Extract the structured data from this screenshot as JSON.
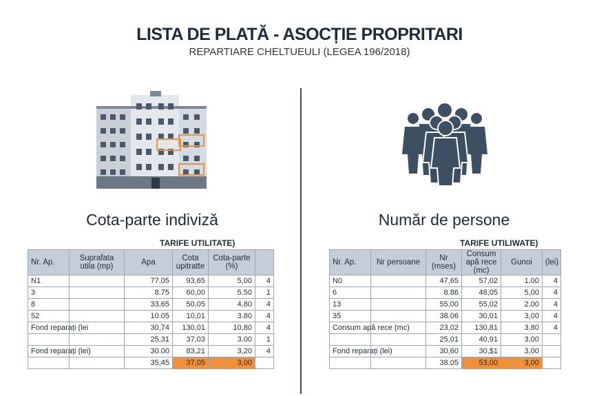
{
  "header": {
    "title": "LISTA DE PLATĂ - ASOCȚIE PROPRITARI",
    "subtitle": "REPARTIARE CHELTUEULI (LEGEA 196/2018)"
  },
  "left": {
    "heading": "Cota-parte indiviză",
    "caption": "TARIFE UTILITATE)",
    "columns": [
      "Nr. Ap.",
      "Suprafata utila (mp)",
      "Apa",
      "Cota upitratte",
      "Cota-parte (%)",
      null
    ],
    "rows": [
      [
        "N1",
        null,
        "77,05",
        "93,65",
        "5,00",
        "4"
      ],
      [
        "3",
        null,
        "8.75",
        "60,00",
        "5.50",
        "1"
      ],
      [
        "8",
        null,
        "33,65",
        "50,05",
        "4,80",
        "4"
      ],
      [
        "52",
        null,
        "10.05",
        "10,01",
        "3.80",
        "4"
      ],
      [
        "Fond reparați (lei",
        null,
        "30,74",
        "130,01",
        "10,80",
        "4"
      ],
      [
        null,
        null,
        "25,31",
        "37,03",
        "3.00",
        "1"
      ],
      [
        "Fond reparați (lei)",
        null,
        "30.00",
        "83,21",
        "3,20",
        "4"
      ],
      [
        null,
        null,
        "35,45",
        "37,05",
        "3,00",
        null
      ]
    ]
  },
  "right": {
    "heading": "Număr de persone",
    "caption": "TARIFE UTILIWATE)",
    "columns": [
      "Nr. Ap.",
      "Nr persoane",
      "Nr (mses)",
      "Consum apă rece (mc)",
      "Gunoi",
      "(lei)"
    ],
    "rows": [
      [
        "N0",
        null,
        "47,65",
        "57,02",
        "1,00",
        "4"
      ],
      [
        "6",
        null,
        "8.86",
        "48,05",
        "5,00",
        "4"
      ],
      [
        "13",
        null,
        "55,00",
        "55,02",
        "2,00",
        "4"
      ],
      [
        "35",
        null,
        "38.06",
        "30,01",
        "3,00",
        "4"
      ],
      [
        "Consum apă rece (mc)",
        null,
        "23,02",
        "130,81",
        "3,80",
        "4"
      ],
      [
        null,
        null,
        "25,01",
        "40,91",
        "3,00",
        null
      ],
      [
        "Fond reparați (lei)",
        null,
        "30,60",
        "30,$1",
        "3,00",
        null
      ],
      [
        null,
        null,
        "38.05",
        "53,00",
        "3,00",
        null
      ]
    ]
  }
}
